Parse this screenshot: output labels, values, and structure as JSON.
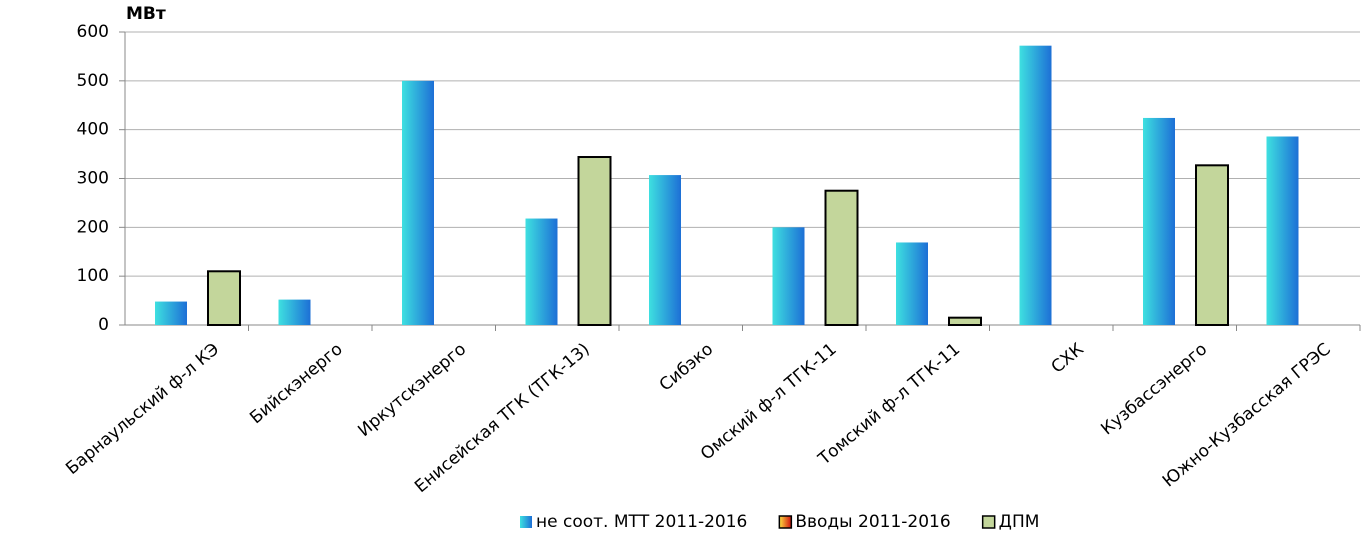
{
  "chart_data": {
    "type": "bar",
    "y_label": "МВт",
    "categories": [
      "Барнаульский ф-л КЭ",
      "Бийскэнерго",
      "Иркутскэнерго",
      "Енисейская ТГК (ТГК-13)",
      "Сибэко",
      "Омский ф-л ТГК-11",
      "Томский ф-л ТГК-11",
      "СХК",
      "Кузбассэнерго",
      "Южно-Кузбасская ГРЭС"
    ],
    "series": [
      {
        "name": "не соот. МТТ 2011-2016",
        "color": "#1d6fd6",
        "values": [
          48,
          52,
          500,
          218,
          307,
          200,
          169,
          572,
          424,
          386
        ]
      },
      {
        "name": "Вводы 2011-2016",
        "color": "#d01010",
        "values": [
          null,
          null,
          null,
          null,
          null,
          null,
          null,
          null,
          null,
          null
        ]
      },
      {
        "name": "ДПМ",
        "color": "#c3d69b",
        "values": [
          110,
          null,
          null,
          344,
          null,
          275,
          15,
          null,
          327,
          null
        ]
      }
    ],
    "ylim": [
      0,
      600
    ],
    "yticks": [
      0,
      100,
      200,
      300,
      400,
      500,
      600
    ],
    "grid": true,
    "legend": "bottom"
  }
}
